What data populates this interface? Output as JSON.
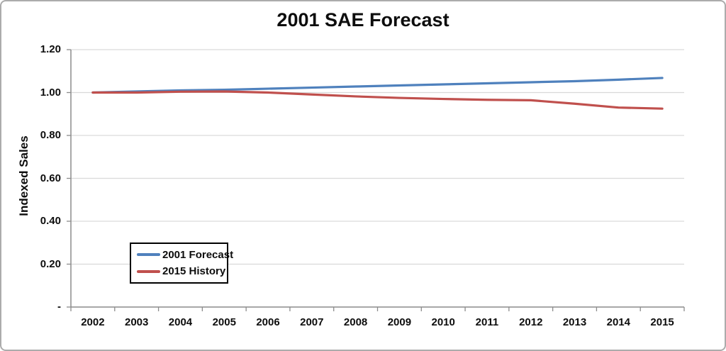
{
  "chart_data": {
    "type": "line",
    "title": "2001 SAE Forecast",
    "xlabel": "",
    "ylabel": "Indexed Sales",
    "categories": [
      "2002",
      "2003",
      "2004",
      "2005",
      "2006",
      "2007",
      "2008",
      "2009",
      "2010",
      "2011",
      "2012",
      "2013",
      "2014",
      "2015"
    ],
    "series": [
      {
        "name": "2001 Forecast",
        "color": "#4F81BD",
        "values": [
          1.0,
          1.005,
          1.01,
          1.013,
          1.018,
          1.023,
          1.028,
          1.033,
          1.038,
          1.043,
          1.048,
          1.053,
          1.06,
          1.068
        ]
      },
      {
        "name": "2015 History",
        "color": "#C0504D",
        "values": [
          1.0,
          1.0,
          1.004,
          1.005,
          1.0,
          0.991,
          0.982,
          0.975,
          0.97,
          0.966,
          0.964,
          0.948,
          0.93,
          0.925
        ]
      }
    ],
    "ylim": [
      0,
      1.2
    ],
    "ytick_step": 0.2,
    "ytick_labels": [
      "-",
      "0.20",
      "0.40",
      "0.60",
      "0.80",
      "1.00",
      "1.20"
    ],
    "grid": true,
    "legend_position": "inside-lower-left",
    "colors": {
      "gridline": "#D9D9D9",
      "axis": "#8C8C8C",
      "text": "#0d0d0d",
      "legend_border": "#000000",
      "frame_border": "#ABABAB",
      "background": "#FFFFFF"
    }
  }
}
